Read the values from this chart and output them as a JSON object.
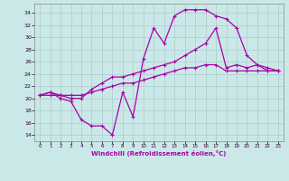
{
  "xlabel": "Windchill (Refroidissement éolien,°C)",
  "bg_color": "#cbe8e8",
  "grid_color": "#aacece",
  "line_color": "#aa00aa",
  "x_ticks": [
    0,
    1,
    2,
    3,
    4,
    5,
    6,
    7,
    8,
    9,
    10,
    11,
    12,
    13,
    14,
    15,
    16,
    17,
    18,
    19,
    20,
    21,
    22,
    23
  ],
  "y_ticks": [
    14,
    16,
    18,
    20,
    22,
    24,
    26,
    28,
    30,
    32,
    34
  ],
  "ylim": [
    13.0,
    35.5
  ],
  "xlim": [
    -0.5,
    23.5
  ],
  "line1_x": [
    0,
    1,
    2,
    3,
    4,
    5,
    6,
    7,
    8,
    9,
    10,
    11,
    12,
    13,
    14,
    15,
    16,
    17,
    18,
    19,
    20,
    21,
    22,
    23
  ],
  "line1_y": [
    20.5,
    21.0,
    20.0,
    19.5,
    16.5,
    15.5,
    15.5,
    14.0,
    21.0,
    17.0,
    26.5,
    31.5,
    29.0,
    33.5,
    34.5,
    34.5,
    34.5,
    33.5,
    33.0,
    31.5,
    27.0,
    25.5,
    25.0,
    24.5
  ],
  "line2_x": [
    0,
    1,
    2,
    3,
    4,
    5,
    6,
    7,
    8,
    9,
    10,
    11,
    12,
    13,
    14,
    15,
    16,
    17,
    18,
    19,
    20,
    21,
    22,
    23
  ],
  "line2_y": [
    20.5,
    21.0,
    20.5,
    20.0,
    20.0,
    21.5,
    22.5,
    23.5,
    23.5,
    24.0,
    24.5,
    25.0,
    25.5,
    26.0,
    27.0,
    28.0,
    29.0,
    31.5,
    25.0,
    25.5,
    25.0,
    25.5,
    24.5,
    24.5
  ],
  "line3_x": [
    0,
    1,
    2,
    3,
    4,
    5,
    6,
    7,
    8,
    9,
    10,
    11,
    12,
    13,
    14,
    15,
    16,
    17,
    18,
    19,
    20,
    21,
    22,
    23
  ],
  "line3_y": [
    20.5,
    20.5,
    20.5,
    20.5,
    20.5,
    21.0,
    21.5,
    22.0,
    22.5,
    22.5,
    23.0,
    23.5,
    24.0,
    24.5,
    25.0,
    25.0,
    25.5,
    25.5,
    24.5,
    24.5,
    24.5,
    24.5,
    24.5,
    24.5
  ]
}
